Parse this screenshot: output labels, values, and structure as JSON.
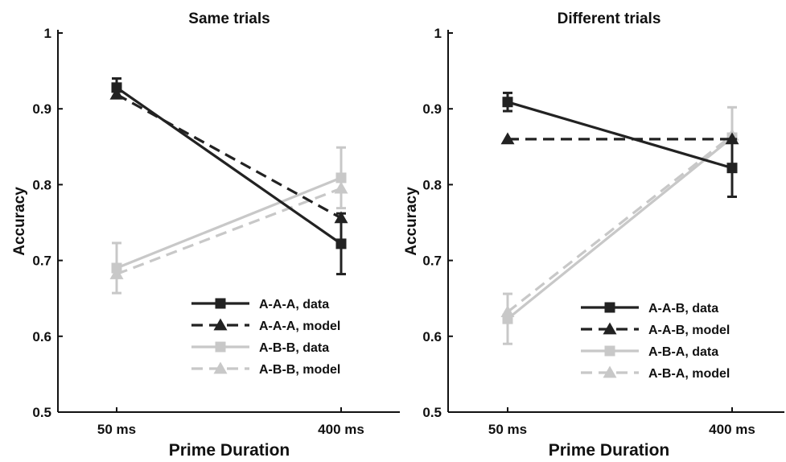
{
  "chart_data": [
    {
      "type": "line",
      "title": "Same trials",
      "xlabel": "Prime Duration",
      "ylabel": "Accuracy",
      "categories": [
        "50 ms",
        "400 ms"
      ],
      "ylim": [
        0.5,
        1
      ],
      "yticks": [
        "0.5",
        "0.6",
        "0.7",
        "0.8",
        "0.9",
        "1"
      ],
      "legend_position": "lower-right",
      "series": [
        {
          "name": "A-A-A, data",
          "values": [
            0.928,
            0.722
          ],
          "errors": [
            0.012,
            0.04
          ],
          "color": "#222222",
          "dash": false,
          "marker": "square"
        },
        {
          "name": "A-A-A, model",
          "values": [
            0.919,
            0.756
          ],
          "color": "#222222",
          "dash": true,
          "marker": "triangle"
        },
        {
          "name": "A-B-B, data",
          "values": [
            0.69,
            0.809
          ],
          "errors": [
            0.033,
            0.04
          ],
          "color": "#c8c8c8",
          "dash": false,
          "marker": "square"
        },
        {
          "name": "A-B-B, model",
          "values": [
            0.682,
            0.795
          ],
          "color": "#c8c8c8",
          "dash": true,
          "marker": "triangle"
        }
      ]
    },
    {
      "type": "line",
      "title": "Different trials",
      "xlabel": "Prime Duration",
      "ylabel": "Accuracy",
      "categories": [
        "50 ms",
        "400 ms"
      ],
      "ylim": [
        0.5,
        1
      ],
      "yticks": [
        "0.5",
        "0.6",
        "0.7",
        "0.8",
        "0.9",
        "1"
      ],
      "legend_position": "lower-right",
      "series": [
        {
          "name": "A-A-B, data",
          "values": [
            0.909,
            0.822
          ],
          "errors": [
            0.012,
            0.038
          ],
          "color": "#222222",
          "dash": false,
          "marker": "square"
        },
        {
          "name": "A-A-B, model",
          "values": [
            0.86,
            0.86
          ],
          "color": "#222222",
          "dash": true,
          "marker": "triangle"
        },
        {
          "name": "A-B-A, data",
          "values": [
            0.623,
            0.862
          ],
          "errors": [
            0.033,
            0.04
          ],
          "color": "#c8c8c8",
          "dash": false,
          "marker": "square"
        },
        {
          "name": "A-B-A, model",
          "values": [
            0.632,
            0.865
          ],
          "color": "#c8c8c8",
          "dash": true,
          "marker": "triangle"
        }
      ]
    }
  ]
}
